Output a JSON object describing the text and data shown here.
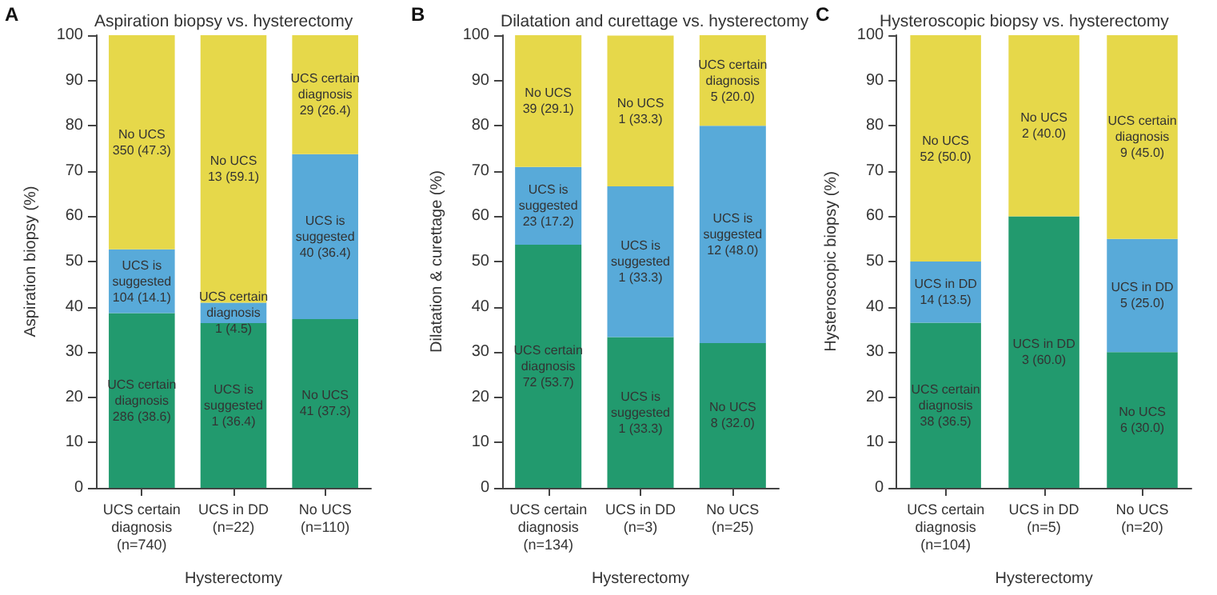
{
  "chart_data": [
    {
      "type": "bar",
      "title": "Aspiration biopsy vs. hysterectomy",
      "annotations": [
        "A"
      ],
      "ylabel": "Aspiration biopsy (%)",
      "xlabel": "Hysterectomy",
      "stacked": true,
      "ylim": [
        0,
        100
      ],
      "yticks": [
        0,
        10,
        20,
        30,
        40,
        50,
        60,
        70,
        80,
        90,
        100
      ],
      "categories": [
        "UCS certain\ndiagnosis\n(n=740)",
        "UCS in DD\n(n=22)",
        "No UCS\n(n=110)"
      ],
      "series": [
        {
          "color": "#229a6e",
          "values": [
            38.6,
            36.4,
            37.3
          ],
          "value_labels": [
            "UCS certain\ndiagnosis\n286 (38.6)",
            "UCS is\nsuggested\n1 (36.4)",
            "No UCS\n41 (37.3)"
          ]
        },
        {
          "color": "#58aad9",
          "values": [
            14.1,
            4.5,
            36.4
          ],
          "value_labels": [
            "UCS is\nsuggested\n104 (14.1)",
            "UCS certain\ndiagnosis\n1 (4.5)",
            "UCS is\nsuggested\n40 (36.4)"
          ]
        },
        {
          "color": "#e6d84a",
          "values": [
            47.3,
            59.1,
            26.4
          ],
          "value_labels": [
            "No UCS\n350 (47.3)",
            "No UCS\n13 (59.1)",
            "UCS certain\ndiagnosis\n29 (26.4)"
          ]
        }
      ]
    },
    {
      "type": "bar",
      "title": "Dilatation and curettage vs. hysterectomy",
      "annotations": [
        "B"
      ],
      "ylabel": "Dilatation & curettage (%)",
      "xlabel": "Hysterectomy",
      "stacked": true,
      "ylim": [
        0,
        100
      ],
      "yticks": [
        0,
        10,
        20,
        30,
        40,
        50,
        60,
        70,
        80,
        90,
        100
      ],
      "categories": [
        "UCS certain\ndiagnosis\n(n=134)",
        "UCS in DD\n(n=3)",
        "No UCS\n(n=25)"
      ],
      "series": [
        {
          "color": "#229a6e",
          "values": [
            53.7,
            33.3,
            32.0
          ],
          "value_labels": [
            "UCS certain\ndiagnosis\n72 (53.7)",
            "UCS is\nsuggested\n1 (33.3)",
            "No UCS\n8 (32.0)"
          ]
        },
        {
          "color": "#58aad9",
          "values": [
            17.2,
            33.3,
            48.0
          ],
          "value_labels": [
            "UCS is\nsuggested\n23 (17.2)",
            "UCS is\nsuggested\n1 (33.3)",
            "UCS is\nsuggested\n12 (48.0)"
          ]
        },
        {
          "color": "#e6d84a",
          "values": [
            29.1,
            33.3,
            20.0
          ],
          "value_labels": [
            "No UCS\n39 (29.1)",
            "No UCS\n1 (33.3)",
            "UCS certain\ndiagnosis\n5 (20.0)"
          ]
        }
      ]
    },
    {
      "type": "bar",
      "title": "Hysteroscopic biopsy vs. hysterectomy",
      "annotations": [
        "C"
      ],
      "ylabel": "Hysteroscopic biopsy (%)",
      "xlabel": "Hysterectomy",
      "stacked": true,
      "ylim": [
        0,
        100
      ],
      "yticks": [
        0,
        10,
        20,
        30,
        40,
        50,
        60,
        70,
        80,
        90,
        100
      ],
      "categories": [
        "UCS certain\ndiagnosis\n(n=104)",
        "UCS in DD\n(n=5)",
        "No UCS\n(n=20)"
      ],
      "series": [
        {
          "color": "#229a6e",
          "values": [
            36.5,
            60.0,
            30.0
          ],
          "value_labels": [
            "UCS certain\ndiagnosis\n38 (36.5)",
            "UCS in DD\n3 (60.0)",
            "No UCS\n6 (30.0)"
          ]
        },
        {
          "color": "#58aad9",
          "values": [
            13.5,
            null,
            25.0
          ],
          "value_labels": [
            "UCS in DD\n14 (13.5)",
            null,
            "UCS in DD\n5 (25.0)"
          ]
        },
        {
          "color": "#e6d84a",
          "values": [
            50.0,
            40.0,
            45.0
          ],
          "value_labels": [
            "No UCS\n52 (50.0)",
            "No UCS\n2 (40.0)",
            "UCS certain\ndiagnosis\n9 (45.0)"
          ]
        }
      ]
    }
  ]
}
